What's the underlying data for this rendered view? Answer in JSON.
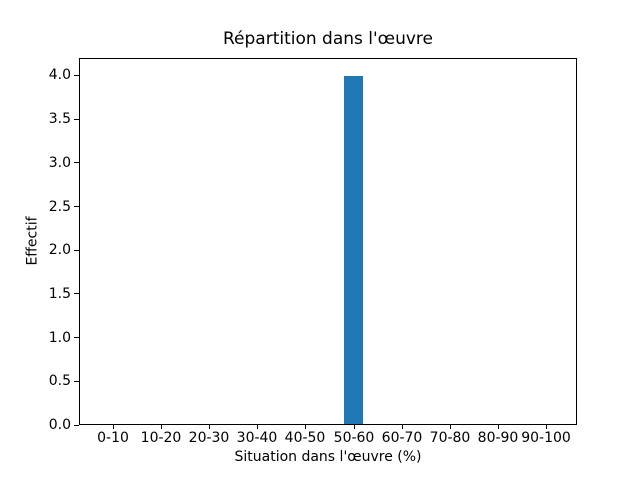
{
  "chart_data": {
    "type": "bar",
    "title": "Répartition dans l'œuvre",
    "xlabel": "Situation dans l'œuvre (%)",
    "ylabel": "Effectif",
    "categories": [
      "0-10",
      "10-20",
      "20-30",
      "30-40",
      "40-50",
      "50-60",
      "60-70",
      "70-80",
      "80-90",
      "90-100"
    ],
    "values": [
      0,
      0,
      0,
      0,
      0,
      4,
      0,
      0,
      0,
      0
    ],
    "ytick_labels": [
      "0.0",
      "0.5",
      "1.0",
      "1.5",
      "2.0",
      "2.5",
      "3.0",
      "3.5",
      "4.0"
    ],
    "ylim": [
      0,
      4.2
    ],
    "bar_color": "#1f77b4",
    "spine_color": "#000000",
    "text_color": "#000000",
    "background_color": "#ffffff",
    "grid": false,
    "legend": "none"
  }
}
